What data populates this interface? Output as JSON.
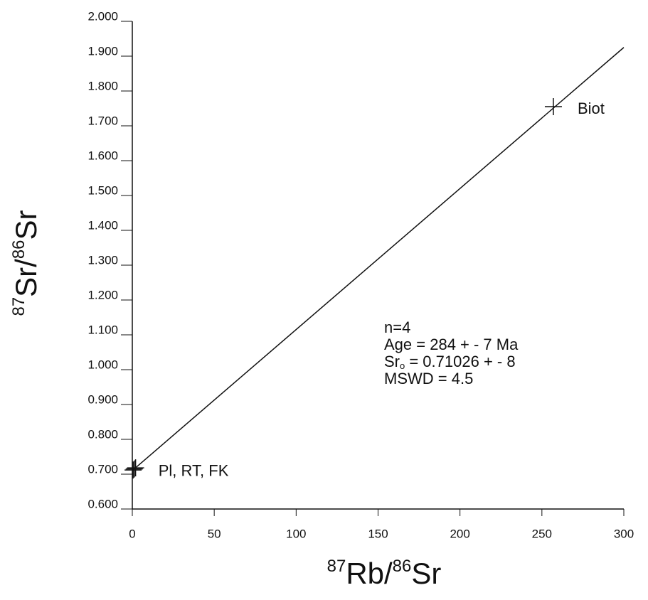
{
  "chart_data": {
    "type": "scatter",
    "x_label": [
      "87",
      "Rb/",
      "86",
      "Sr"
    ],
    "y_label": [
      "87",
      "Sr/",
      "86",
      "Sr"
    ],
    "x": [
      0.5,
      1.2,
      2.0,
      257
    ],
    "y": [
      0.712,
      0.715,
      0.718,
      1.755
    ],
    "point_labels": [
      {
        "text": "Pl, RT, FK",
        "index": 1
      },
      {
        "text": "Biot",
        "index": 3
      }
    ],
    "fit_line": {
      "x": [
        0,
        300
      ],
      "y": [
        0.71026,
        1.925
      ]
    },
    "annotation": {
      "line1": "n=4",
      "line2": "Age = 284 + -  7 Ma",
      "line3_main": "Sr",
      "line3_sub": "o",
      "line3_rest": " = 0.71026 + - 8",
      "line4": "MSWD = 4.5"
    },
    "xlim": [
      0,
      300
    ],
    "xticks": [
      0,
      50,
      100,
      150,
      200,
      250,
      300
    ],
    "ylim": [
      0.6,
      2.0
    ],
    "yticks": [
      {
        "value": 0.6,
        "label": "0.600"
      },
      {
        "value": 0.7,
        "label": "0.700"
      },
      {
        "value": 0.8,
        "label": "0.800"
      },
      {
        "value": 0.9,
        "label": "0.900"
      },
      {
        "value": 1.0,
        "label": "1.000"
      },
      {
        "value": 1.1,
        "label": "1.100"
      },
      {
        "value": 1.2,
        "label": "1.200"
      },
      {
        "value": 1.3,
        "label": "1.300"
      },
      {
        "value": 1.4,
        "label": "1.400"
      },
      {
        "value": 1.5,
        "label": "1.500"
      },
      {
        "value": 1.6,
        "label": "1.600"
      },
      {
        "value": 1.7,
        "label": "1.700"
      },
      {
        "value": 1.8,
        "label": "1.800"
      },
      {
        "value": 1.9,
        "label": "1.900"
      },
      {
        "value": 2.0,
        "label": "2.000"
      }
    ],
    "color": "#111111"
  }
}
